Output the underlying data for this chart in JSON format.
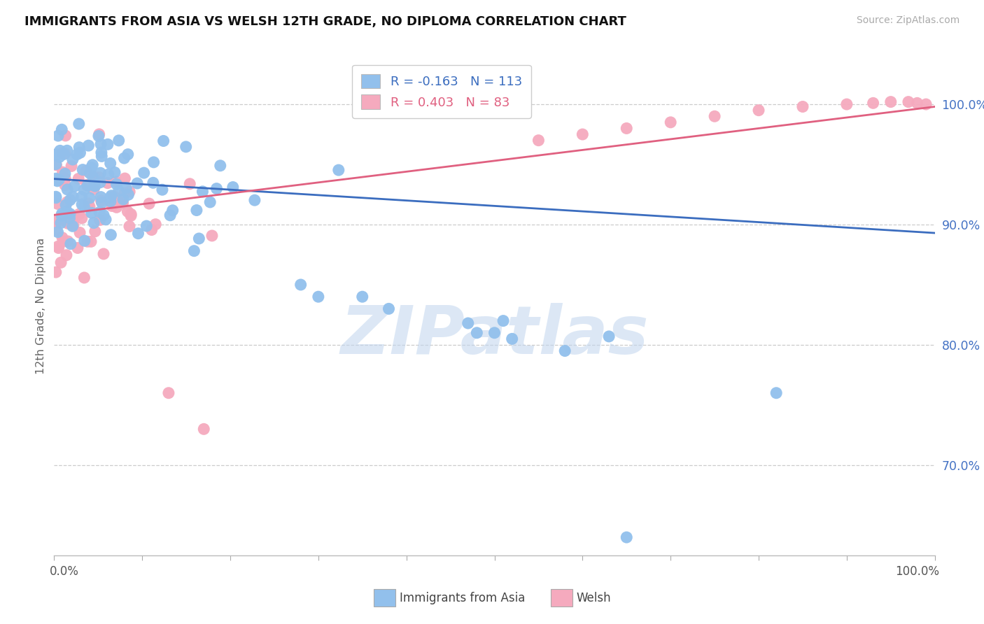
{
  "title": "IMMIGRANTS FROM ASIA VS WELSH 12TH GRADE, NO DIPLOMA CORRELATION CHART",
  "source": "Source: ZipAtlas.com",
  "ylabel": "12th Grade, No Diploma",
  "yticks": [
    0.7,
    0.8,
    0.9,
    1.0
  ],
  "ytick_labels": [
    "70.0%",
    "80.0%",
    "90.0%",
    "100.0%"
  ],
  "xlim": [
    0.0,
    1.0
  ],
  "ylim": [
    0.625,
    1.04
  ],
  "blue_R": -0.163,
  "blue_N": 113,
  "pink_R": 0.403,
  "pink_N": 83,
  "blue_color": "#92C0EC",
  "pink_color": "#F5AABE",
  "blue_line_color": "#3B6DBF",
  "pink_line_color": "#E06080",
  "legend_label_blue": "Immigrants from Asia",
  "legend_label_pink": "Welsh",
  "watermark_text": "ZIPatlas",
  "watermark_color": "#C0D5EE",
  "blue_trend_x": [
    0.0,
    1.0
  ],
  "blue_trend_y": [
    0.938,
    0.893
  ],
  "pink_trend_x": [
    0.0,
    1.0
  ],
  "pink_trend_y": [
    0.908,
    0.998
  ]
}
